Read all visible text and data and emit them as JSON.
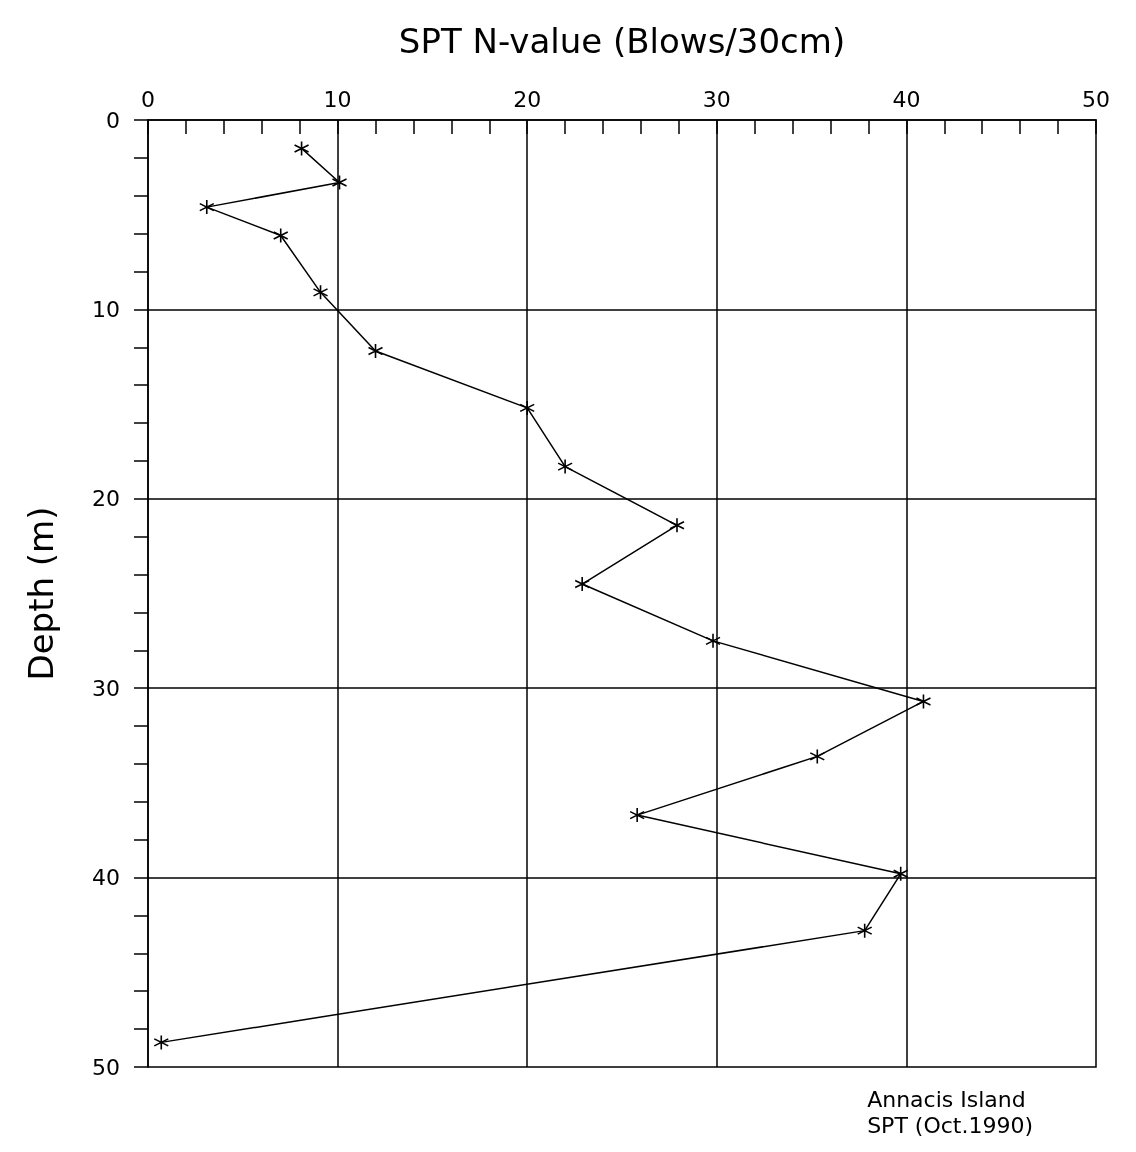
{
  "chart_data": {
    "type": "line",
    "xlabel": "SPT N-value (Blows/30cm)",
    "ylabel": "Depth (m)",
    "x": [
      8.1,
      10.1,
      3.1,
      7.0,
      9.1,
      12.0,
      20.0,
      22.0,
      27.9,
      22.9,
      29.8,
      40.9,
      35.3,
      25.8,
      39.7,
      37.8,
      0.7
    ],
    "values": [
      1.5,
      3.3,
      4.6,
      6.1,
      9.1,
      12.2,
      15.2,
      18.3,
      21.4,
      24.5,
      27.5,
      30.7,
      33.6,
      36.7,
      39.8,
      42.8,
      48.7
    ],
    "color": "#000000",
    "marker": "cross",
    "line_style": "solid",
    "xlim": [
      0,
      50
    ],
    "xticks": [
      0,
      {
        "value": 2,
        "label": null
      },
      {
        "value": 4,
        "label": null
      },
      {
        "value": 6,
        "label": null
      },
      {
        "value": 8,
        "label": null
      },
      10,
      {
        "value": 12,
        "label": null
      },
      {
        "value": 14,
        "label": null
      },
      {
        "value": 16,
        "label": null
      },
      {
        "value": 18,
        "label": null
      },
      20,
      {
        "value": 22,
        "label": null
      },
      {
        "value": 24,
        "label": null
      },
      {
        "value": 26,
        "label": null
      },
      {
        "value": 28,
        "label": null
      },
      30,
      {
        "value": 32,
        "label": null
      },
      {
        "value": 34,
        "label": null
      },
      {
        "value": 36,
        "label": null
      },
      {
        "value": 38,
        "label": null
      },
      40,
      {
        "value": 42,
        "label": null
      },
      {
        "value": 44,
        "label": null
      },
      {
        "value": 46,
        "label": null
      },
      {
        "value": 48,
        "label": null
      },
      50
    ],
    "ylim": [
      50,
      0
    ],
    "yticks": [
      0,
      {
        "value": 2,
        "label": null
      },
      {
        "value": 4,
        "label": null
      },
      {
        "value": 6,
        "label": null
      },
      {
        "value": 8,
        "label": null
      },
      10,
      {
        "value": 12,
        "label": null
      },
      {
        "value": 14,
        "label": null
      },
      {
        "value": 16,
        "label": null
      },
      {
        "value": 18,
        "label": null
      },
      20,
      {
        "value": 22,
        "label": null
      },
      {
        "value": 24,
        "label": null
      },
      {
        "value": 26,
        "label": null
      },
      {
        "value": 28,
        "label": null
      },
      30,
      {
        "value": 32,
        "label": null
      },
      {
        "value": 34,
        "label": null
      },
      {
        "value": 36,
        "label": null
      },
      {
        "value": 38,
        "label": null
      },
      40,
      {
        "value": 42,
        "label": null
      },
      {
        "value": 44,
        "label": null
      },
      {
        "value": 46,
        "label": null
      },
      {
        "value": 48,
        "label": null
      },
      50
    ],
    "grid": true,
    "annotations": [
      "Annacis Island",
      "SPT (Oct.1990)"
    ]
  }
}
